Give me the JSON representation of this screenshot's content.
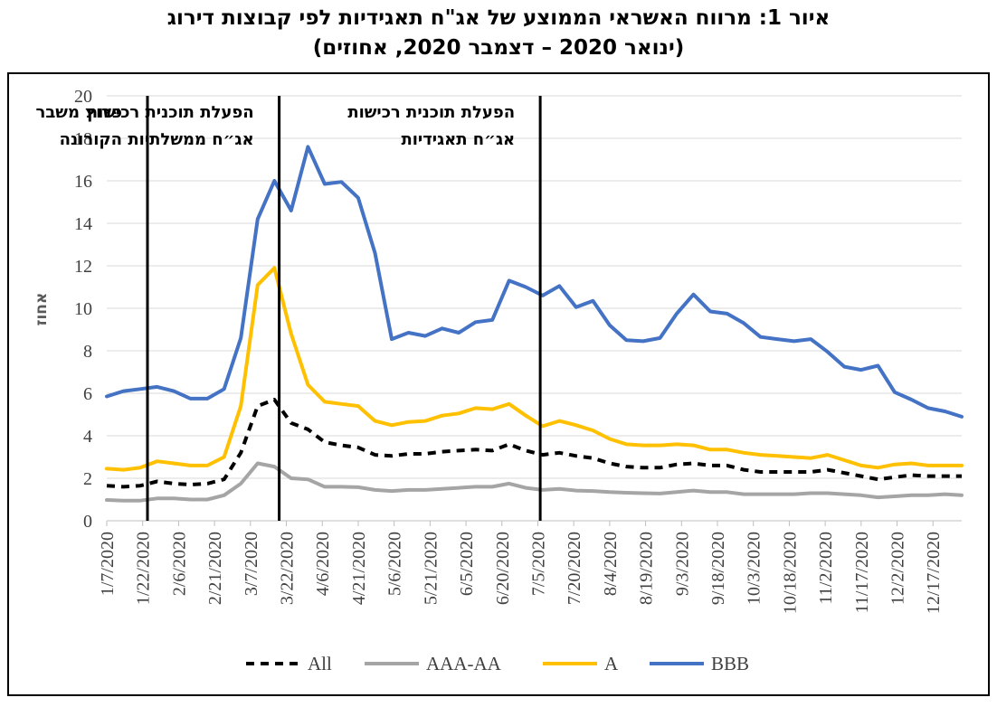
{
  "title_lines": [
    "איור 1: מרווח האשראי הממוצע של אג\"ח תאגידיות לפי קבוצות דירוג",
    "(ינואר 2020 – דצמבר 2020, אחוזים)"
  ],
  "chart_data": {
    "type": "line",
    "ylabel": "אחוז",
    "ylim": [
      0,
      20
    ],
    "yticks": [
      "0",
      "2",
      "4",
      "6",
      "8",
      "10",
      "12",
      "14",
      "16",
      "18",
      "20"
    ],
    "x_tick_labels": [
      "1/7/2020",
      "1/22/2020",
      "2/6/2020",
      "2/21/2020",
      "3/7/2020",
      "3/22/2020",
      "4/6/2020",
      "4/21/2020",
      "5/6/2020",
      "5/21/2020",
      "6/5/2020",
      "6/20/2020",
      "7/5/2020",
      "7/20/2020",
      "8/4/2020",
      "8/19/2020",
      "9/3/2020",
      "9/18/2020",
      "10/3/2020",
      "10/18/2020",
      "11/2/2020",
      "11/17/2020",
      "12/2/2020",
      "12/17/2020"
    ],
    "grid": true,
    "legend_position": "bottom",
    "x": [
      "1/7/2020",
      "1/14/2020",
      "1/21/2020",
      "1/28/2020",
      "2/4/2020",
      "2/11/2020",
      "2/18/2020",
      "2/25/2020",
      "3/3/2020",
      "3/10/2020",
      "3/17/2020",
      "3/24/2020",
      "3/31/2020",
      "4/7/2020",
      "4/14/2020",
      "4/21/2020",
      "4/28/2020",
      "5/5/2020",
      "5/12/2020",
      "5/19/2020",
      "5/26/2020",
      "6/2/2020",
      "6/9/2020",
      "6/16/2020",
      "6/23/2020",
      "6/30/2020",
      "7/7/2020",
      "7/14/2020",
      "7/21/2020",
      "7/28/2020",
      "8/4/2020",
      "8/11/2020",
      "8/18/2020",
      "8/25/2020",
      "9/1/2020",
      "9/8/2020",
      "9/15/2020",
      "9/22/2020",
      "9/29/2020",
      "10/6/2020",
      "10/13/2020",
      "10/20/2020",
      "10/27/2020",
      "11/3/2020",
      "11/10/2020",
      "11/17/2020",
      "11/24/2020",
      "12/1/2020",
      "12/8/2020",
      "12/15/2020",
      "12/22/2020",
      "12/29/2020"
    ],
    "series": [
      {
        "name": "All",
        "color": "#000000",
        "dash": "dashed",
        "values": [
          1.65,
          1.6,
          1.65,
          1.85,
          1.75,
          1.7,
          1.75,
          1.95,
          3.2,
          5.4,
          5.7,
          4.6,
          4.3,
          3.7,
          3.55,
          3.45,
          3.1,
          3.05,
          3.15,
          3.15,
          3.25,
          3.3,
          3.35,
          3.3,
          3.6,
          3.3,
          3.1,
          3.2,
          3.05,
          2.95,
          2.7,
          2.55,
          2.5,
          2.5,
          2.65,
          2.7,
          2.6,
          2.6,
          2.4,
          2.3,
          2.3,
          2.3,
          2.3,
          2.4,
          2.25,
          2.1,
          1.95,
          2.05,
          2.15,
          2.1,
          2.1,
          2.1
        ]
      },
      {
        "name": "AAA-AA",
        "color": "#a5a5a5",
        "dash": "solid",
        "values": [
          0.98,
          0.95,
          0.95,
          1.05,
          1.05,
          1.0,
          1.0,
          1.2,
          1.75,
          2.7,
          2.55,
          2.0,
          1.95,
          1.6,
          1.6,
          1.58,
          1.45,
          1.4,
          1.45,
          1.45,
          1.5,
          1.55,
          1.6,
          1.6,
          1.75,
          1.55,
          1.45,
          1.5,
          1.42,
          1.4,
          1.35,
          1.32,
          1.3,
          1.28,
          1.35,
          1.42,
          1.35,
          1.35,
          1.25,
          1.25,
          1.25,
          1.25,
          1.3,
          1.3,
          1.25,
          1.2,
          1.1,
          1.15,
          1.2,
          1.2,
          1.25,
          1.2
        ]
      },
      {
        "name": "A",
        "color": "#ffc000",
        "dash": "solid",
        "values": [
          2.45,
          2.4,
          2.5,
          2.8,
          2.7,
          2.6,
          2.6,
          3.0,
          5.4,
          11.1,
          11.9,
          8.8,
          6.4,
          5.6,
          5.5,
          5.4,
          4.7,
          4.5,
          4.65,
          4.7,
          4.95,
          5.05,
          5.3,
          5.25,
          5.5,
          4.95,
          4.45,
          4.7,
          4.5,
          4.25,
          3.85,
          3.6,
          3.55,
          3.55,
          3.6,
          3.55,
          3.35,
          3.35,
          3.2,
          3.1,
          3.05,
          3.0,
          2.95,
          3.1,
          2.85,
          2.6,
          2.5,
          2.65,
          2.7,
          2.6,
          2.6,
          2.6
        ]
      },
      {
        "name": "BBB",
        "color": "#4472c4",
        "dash": "solid",
        "values": [
          5.85,
          6.1,
          6.2,
          6.3,
          6.1,
          5.75,
          5.75,
          6.2,
          8.6,
          14.2,
          16.0,
          14.6,
          17.6,
          15.85,
          15.95,
          15.2,
          12.6,
          8.55,
          8.85,
          8.7,
          9.05,
          8.85,
          9.35,
          9.45,
          11.3,
          11.0,
          10.6,
          11.05,
          10.05,
          10.35,
          9.2,
          8.5,
          8.45,
          8.6,
          9.75,
          10.65,
          9.85,
          9.75,
          9.3,
          8.65,
          8.55,
          8.45,
          8.55,
          7.95,
          7.25,
          7.1,
          7.3,
          6.05,
          5.7,
          5.3,
          5.15,
          4.9
        ]
      }
    ],
    "annotations": [
      {
        "date": "1/24/2020",
        "lines": [
          "פרוץ משבר",
          "הקורונה"
        ]
      },
      {
        "date": "3/19/2020",
        "lines": [
          "הפעלת תוכנית רכישות",
          "אג״ח ממשלתיות"
        ]
      },
      {
        "date": "7/6/2020",
        "lines": [
          "הפעלת תוכנית רכישות",
          "אג״ח תאגידיות"
        ]
      }
    ]
  }
}
